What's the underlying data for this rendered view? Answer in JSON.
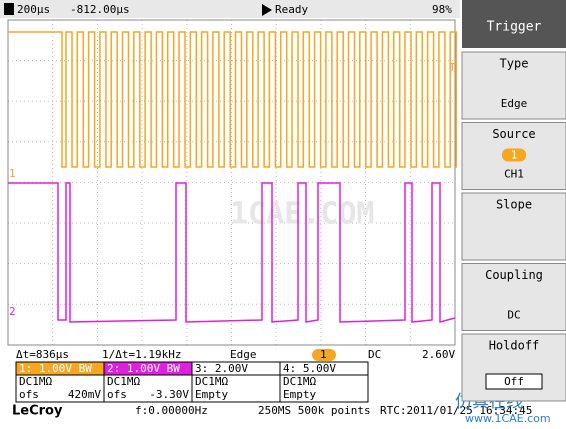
{
  "status_bar": {
    "timebase": "200µs",
    "delay": "-812.00µs",
    "state": "Ready",
    "battery": "98%"
  },
  "screen": {
    "ch1_marker": "1",
    "ch2_marker": "2",
    "trigger_marker": "T",
    "watermark": "1CAE.COM"
  },
  "measure_bar": {
    "delta_t": "Δt=836µs",
    "inverse_delta_t": "1/Δt=1.19kHz",
    "trigger_type": "Edge",
    "trigger_source": "1",
    "coupling": "DC",
    "level": "2.60V"
  },
  "channels": [
    {
      "header": "1: 1.00V  BW",
      "coupling": "DC1MΩ",
      "offset_label": "ofs",
      "offset": "420mV"
    },
    {
      "header": "2: 1.00V  BW",
      "coupling": "DC1MΩ",
      "offset_label": "ofs",
      "offset": "-3.30V"
    },
    {
      "header": "3: 2.00V",
      "coupling": "DC1MΩ",
      "offset_label": "Empty"
    },
    {
      "header": "4: 5.00V",
      "coupling": "DC1MΩ",
      "offset_label": "Empty"
    }
  ],
  "footer": {
    "brand": "LeCroy",
    "frequency": "f:0.00000Hz",
    "sampling": "250MS 500k points",
    "clock": "RTC:2011/01/25 16:34:45"
  },
  "menu": {
    "title": "Trigger",
    "items": [
      {
        "label": "Type",
        "value": "Edge"
      },
      {
        "label": "Source",
        "badge": "1",
        "value": "CH1"
      },
      {
        "label": "Slope"
      },
      {
        "label": "Coupling",
        "value": "DC"
      },
      {
        "label": "Holdoff",
        "value": "Off"
      }
    ]
  },
  "watermark": {
    "cn": "仿真在线",
    "url": "www.1CAE.com"
  }
}
